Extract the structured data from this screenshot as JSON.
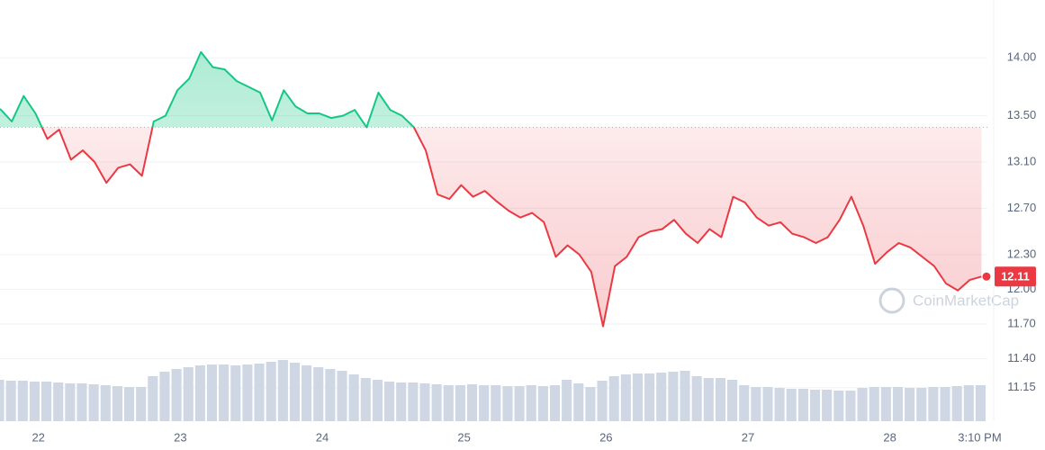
{
  "chart_data": {
    "type": "line",
    "x": [
      0,
      2,
      4,
      6,
      8,
      10,
      12,
      14,
      16,
      18,
      20,
      22,
      24,
      26,
      28,
      30,
      32,
      34,
      36,
      38,
      40,
      42,
      44,
      46,
      48,
      50,
      52,
      54,
      56,
      58,
      60,
      62,
      64,
      66,
      68,
      70,
      72,
      74,
      76,
      78,
      80,
      82,
      84,
      86,
      88,
      90,
      92,
      94,
      96,
      98,
      100,
      102,
      104,
      106,
      108,
      110,
      112,
      114,
      116,
      118,
      120,
      122,
      124,
      126,
      128,
      130,
      132,
      134,
      136,
      138,
      140,
      142,
      144,
      146,
      148,
      150,
      152,
      154,
      156,
      158,
      160,
      162,
      164,
      166
    ],
    "series": [
      {
        "name": "Price",
        "color_up": "#16c784",
        "color_down": "#ea3943",
        "values": [
          13.56,
          13.45,
          13.67,
          13.52,
          13.3,
          13.38,
          13.12,
          13.2,
          13.1,
          12.92,
          13.05,
          13.08,
          12.98,
          13.45,
          13.5,
          13.72,
          13.82,
          14.05,
          13.92,
          13.9,
          13.8,
          13.75,
          13.7,
          13.46,
          13.72,
          13.58,
          13.52,
          13.52,
          13.48,
          13.5,
          13.55,
          13.4,
          13.7,
          13.55,
          13.5,
          13.4,
          13.2,
          12.82,
          12.78,
          12.9,
          12.8,
          12.85,
          12.76,
          12.68,
          12.62,
          12.66,
          12.58,
          12.28,
          12.38,
          12.3,
          12.15,
          11.68,
          12.2,
          12.28,
          12.45,
          12.5,
          12.52,
          12.6,
          12.48,
          12.4,
          12.52,
          12.45,
          12.8,
          12.75,
          12.62,
          12.55,
          12.58,
          12.48,
          12.45,
          12.4,
          12.45,
          12.6,
          12.8,
          12.55,
          12.22,
          12.32,
          12.4,
          12.36,
          12.28,
          12.2,
          12.05,
          11.99,
          12.08,
          12.11
        ]
      },
      {
        "name": "Volume",
        "color": "#cfd6e4",
        "values": [
          46,
          45,
          45,
          44,
          44,
          43,
          42,
          42,
          41,
          40,
          39,
          38,
          38,
          50,
          55,
          58,
          60,
          62,
          63,
          63,
          62,
          63,
          64,
          66,
          68,
          65,
          62,
          60,
          58,
          56,
          52,
          48,
          46,
          44,
          43,
          43,
          42,
          41,
          40,
          40,
          41,
          40,
          40,
          39,
          39,
          40,
          39,
          40,
          46,
          42,
          38,
          45,
          50,
          52,
          53,
          53,
          54,
          55,
          56,
          50,
          48,
          48,
          46,
          40,
          38,
          38,
          37,
          36,
          36,
          35,
          35,
          34,
          34,
          37,
          38,
          38,
          38,
          37,
          37,
          38,
          38,
          39,
          40,
          40
        ]
      }
    ],
    "baseline": 13.4,
    "xlim": [
      0,
      167
    ],
    "xticks": [
      {
        "value": 6.5,
        "label": "22"
      },
      {
        "value": 30.5,
        "label": "23"
      },
      {
        "value": 54.5,
        "label": "24"
      },
      {
        "value": 78.5,
        "label": "25"
      },
      {
        "value": 102.5,
        "label": "26"
      },
      {
        "value": 126.5,
        "label": "27"
      },
      {
        "value": 150.5,
        "label": "28"
      },
      {
        "value": 165.7,
        "label": "3:10 PM"
      }
    ],
    "ylim": [
      10.86,
      14.5
    ],
    "yticks": [
      {
        "value": 14,
        "label": "14.00"
      },
      {
        "value": 13.5,
        "label": "13.50"
      },
      {
        "value": 13.1,
        "label": "13.10"
      },
      {
        "value": 12.7,
        "label": "12.70"
      },
      {
        "value": 12.3,
        "label": "12.30"
      },
      {
        "value": 12,
        "label": "12.00"
      },
      {
        "value": 11.7,
        "label": "11.70"
      },
      {
        "value": 11.4,
        "label": "11.40"
      },
      11.15
    ],
    "volume_lim": [
      0,
      70
    ],
    "watermark": "CoinMarketCap",
    "grid": true
  }
}
